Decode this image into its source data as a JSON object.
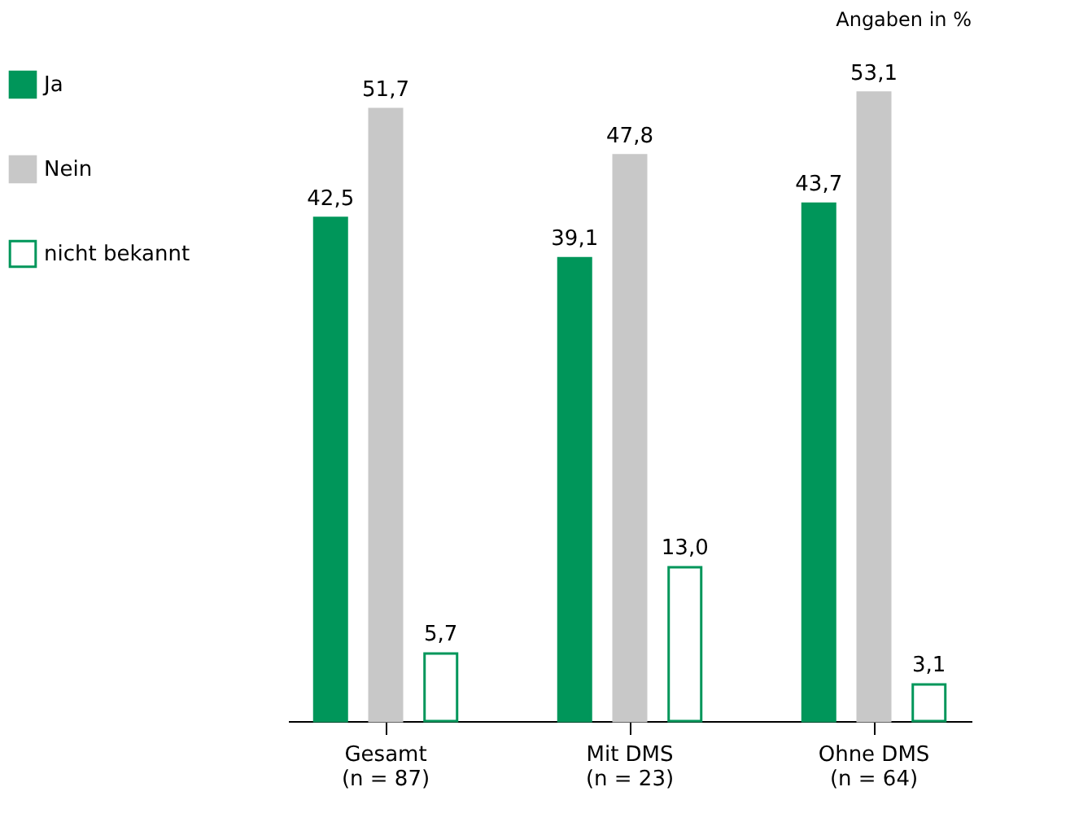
{
  "chart_data": {
    "type": "bar",
    "categories": [
      "Gesamt\n(n = 87)",
      "Mit DMS\n(n = 23)",
      "Ohne DMS\n(n = 64)"
    ],
    "series": [
      {
        "name": "Ja",
        "color": "#00965a",
        "values": [
          42.5,
          39.1,
          43.7
        ],
        "value_labels": [
          "42,5",
          "39,1",
          "43,7"
        ]
      },
      {
        "name": "Nein",
        "color": "#c8c8c8",
        "values": [
          51.7,
          47.8,
          53.1
        ],
        "value_labels": [
          "51,7",
          "47,8",
          "53,1"
        ]
      },
      {
        "name": "nicht bekannt",
        "color": "#00965a",
        "values": [
          5.7,
          13.0,
          3.1
        ],
        "value_labels": [
          "5,7",
          "13,0",
          "3,1"
        ]
      }
    ],
    "annotations": [
      "Angaben in %"
    ],
    "legend": "top left"
  }
}
